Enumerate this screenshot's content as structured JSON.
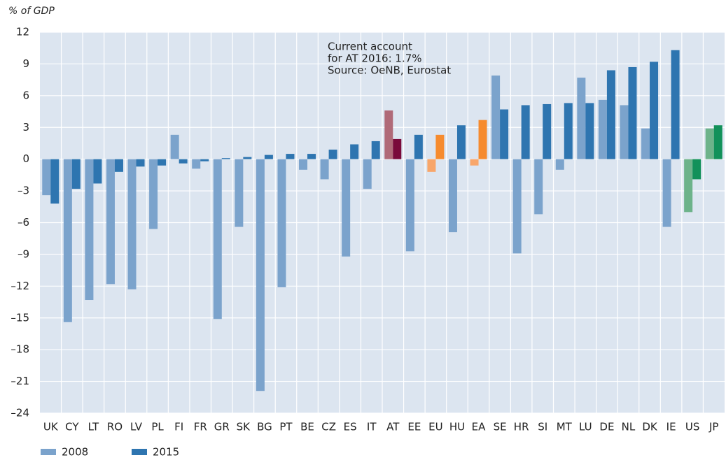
{
  "chart_data": {
    "type": "bar",
    "ylabel": "% of GDP",
    "annotation": [
      "Current account",
      "for AT 2016: 1.7%",
      "Source: OeNB, Eurostat"
    ],
    "categories": [
      "UK",
      "CY",
      "LT",
      "RO",
      "LV",
      "PL",
      "FI",
      "FR",
      "GR",
      "SK",
      "BG",
      "PT",
      "BE",
      "CZ",
      "ES",
      "IT",
      "AT",
      "EE",
      "EU",
      "HU",
      "EA",
      "SE",
      "HR",
      "SI",
      "MT",
      "LU",
      "DE",
      "NL",
      "DK",
      "IE",
      "US",
      "JP"
    ],
    "series": [
      {
        "name": "2008",
        "color": "#7ba3cc",
        "colors": [
          "#7ba3cc",
          "#7ba3cc",
          "#7ba3cc",
          "#7ba3cc",
          "#7ba3cc",
          "#7ba3cc",
          "#7ba3cc",
          "#7ba3cc",
          "#7ba3cc",
          "#7ba3cc",
          "#7ba3cc",
          "#7ba3cc",
          "#7ba3cc",
          "#7ba3cc",
          "#7ba3cc",
          "#7ba3cc",
          "#b06a78",
          "#7ba3cc",
          "#f8a66a",
          "#7ba3cc",
          "#f8a66a",
          "#7ba3cc",
          "#7ba3cc",
          "#7ba3cc",
          "#7ba3cc",
          "#7ba3cc",
          "#7ba3cc",
          "#7ba3cc",
          "#7ba3cc",
          "#7ba3cc",
          "#6db38a",
          "#6db38a"
        ],
        "values": [
          -3.4,
          -15.4,
          -13.3,
          -11.8,
          -12.3,
          -6.6,
          2.3,
          -0.9,
          -15.1,
          -6.4,
          -21.9,
          -12.1,
          -1.0,
          -1.9,
          -9.2,
          -2.8,
          4.6,
          -8.7,
          -1.2,
          -6.9,
          -0.6,
          7.9,
          -8.9,
          -5.2,
          -1.0,
          7.7,
          5.6,
          5.1,
          2.9,
          -6.4,
          -5.0,
          2.9
        ]
      },
      {
        "name": "2015",
        "color": "#2e75b0",
        "colors": [
          "#2e75b0",
          "#2e75b0",
          "#2e75b0",
          "#2e75b0",
          "#2e75b0",
          "#2e75b0",
          "#2e75b0",
          "#2e75b0",
          "#2e75b0",
          "#2e75b0",
          "#2e75b0",
          "#2e75b0",
          "#2e75b0",
          "#2e75b0",
          "#2e75b0",
          "#2e75b0",
          "#7a0a3a",
          "#2e75b0",
          "#f68b2e",
          "#2e75b0",
          "#f68b2e",
          "#2e75b0",
          "#2e75b0",
          "#2e75b0",
          "#2e75b0",
          "#2e75b0",
          "#2e75b0",
          "#2e75b0",
          "#2e75b0",
          "#2e75b0",
          "#12915a",
          "#12915a"
        ],
        "values": [
          -4.2,
          -2.8,
          -2.3,
          -1.2,
          -0.7,
          -0.6,
          -0.4,
          -0.2,
          0.1,
          0.2,
          0.4,
          0.5,
          0.5,
          0.9,
          1.4,
          1.7,
          1.9,
          2.3,
          2.3,
          3.2,
          3.7,
          4.7,
          5.1,
          5.2,
          5.3,
          5.3,
          8.4,
          8.7,
          9.2,
          10.3,
          -1.9,
          3.2
        ]
      }
    ],
    "ylim": [
      -24,
      12
    ],
    "yticks": [
      12,
      9,
      6,
      3,
      0,
      {
        "value": -3,
        "label": "–3"
      },
      {
        "value": -6,
        "label": "–6"
      },
      {
        "value": -9,
        "label": "–9"
      },
      {
        "value": -12,
        "label": "–12"
      },
      {
        "value": -15,
        "label": "–15"
      },
      {
        "value": -18,
        "label": "–18"
      },
      {
        "value": -21,
        "label": "–21"
      },
      {
        "value": -24,
        "label": "–24"
      }
    ],
    "grid": true
  }
}
